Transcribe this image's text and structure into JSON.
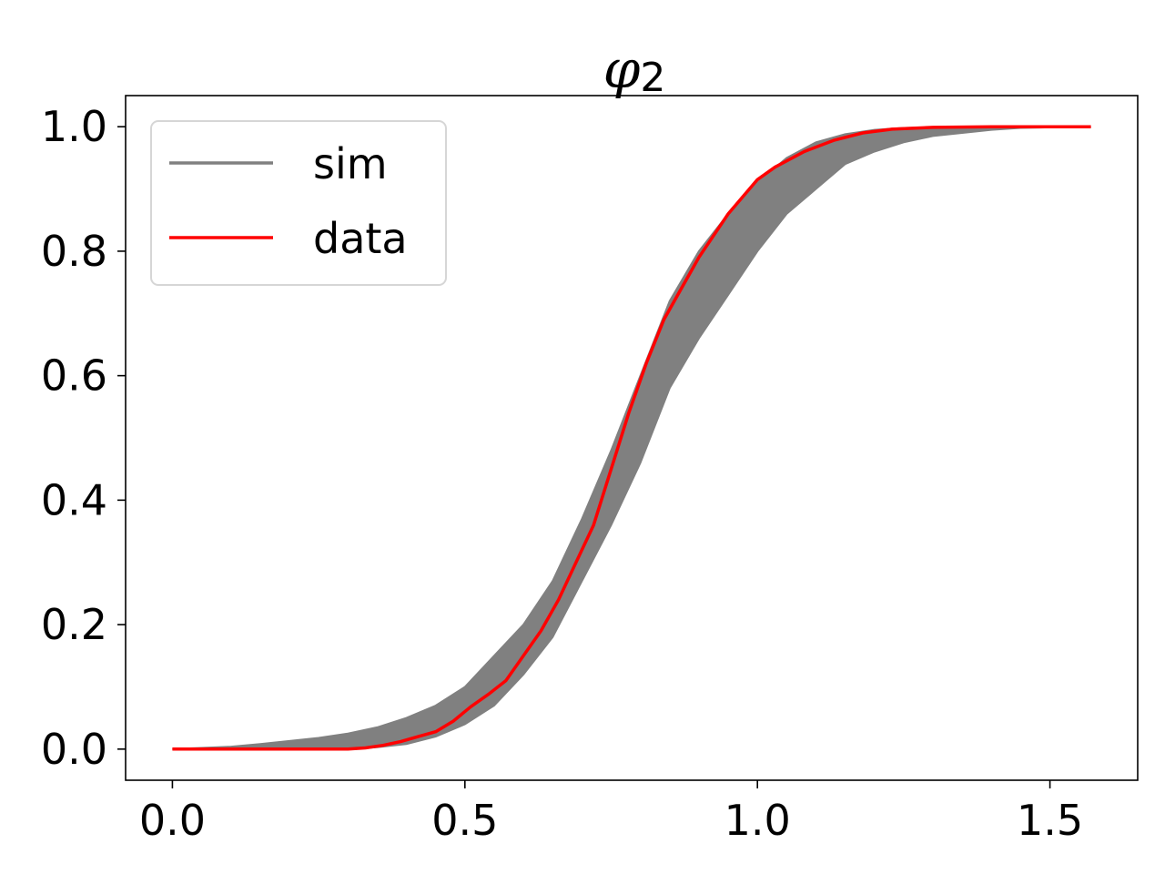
{
  "chart_data": {
    "type": "line",
    "title": {
      "base": "φ",
      "subscript": "2"
    },
    "xlabel": "",
    "ylabel": "",
    "xlim": [
      -0.08,
      1.65
    ],
    "ylim": [
      -0.05,
      1.05
    ],
    "xticks": [
      0.0,
      0.5,
      1.0,
      1.5
    ],
    "xtick_labels": [
      "0.0",
      "0.5",
      "1.0",
      "1.5"
    ],
    "yticks": [
      0.0,
      0.2,
      0.4,
      0.6,
      0.8,
      1.0
    ],
    "ytick_labels": [
      "0.0",
      "0.2",
      "0.4",
      "0.6",
      "0.8",
      "1.0"
    ],
    "grid": false,
    "legend_position": "upper-left",
    "legend": [
      {
        "label": "sim",
        "color": "#808080"
      },
      {
        "label": "data",
        "color": "#ff0000"
      }
    ],
    "sim_band": {
      "name": "sim",
      "color": "#808080",
      "x": [
        0.0,
        0.05,
        0.1,
        0.15,
        0.2,
        0.25,
        0.3,
        0.35,
        0.4,
        0.45,
        0.5,
        0.55,
        0.6,
        0.65,
        0.7,
        0.75,
        0.8,
        0.85,
        0.9,
        0.95,
        1.0,
        1.05,
        1.1,
        1.15,
        1.2,
        1.25,
        1.3,
        1.35,
        1.4,
        1.45,
        1.5,
        1.57
      ],
      "lower": [
        0.0,
        0.0,
        0.0,
        0.0,
        0.0,
        0.0,
        0.0,
        0.003,
        0.008,
        0.02,
        0.04,
        0.07,
        0.12,
        0.18,
        0.27,
        0.36,
        0.46,
        0.58,
        0.66,
        0.73,
        0.8,
        0.86,
        0.9,
        0.94,
        0.96,
        0.975,
        0.985,
        0.99,
        0.995,
        0.998,
        0.999,
        1.0
      ],
      "upper": [
        0.0,
        0.002,
        0.004,
        0.008,
        0.013,
        0.018,
        0.025,
        0.035,
        0.05,
        0.07,
        0.1,
        0.15,
        0.2,
        0.27,
        0.37,
        0.48,
        0.6,
        0.72,
        0.8,
        0.86,
        0.91,
        0.95,
        0.975,
        0.988,
        0.995,
        0.998,
        0.999,
        1.0,
        1.0,
        1.0,
        1.0,
        1.0
      ]
    },
    "series": [
      {
        "name": "data",
        "color": "#ff0000",
        "x": [
          0.0,
          0.05,
          0.1,
          0.15,
          0.2,
          0.25,
          0.3,
          0.33,
          0.36,
          0.39,
          0.42,
          0.45,
          0.48,
          0.51,
          0.54,
          0.57,
          0.6,
          0.63,
          0.66,
          0.69,
          0.72,
          0.75,
          0.78,
          0.81,
          0.84,
          0.87,
          0.9,
          0.95,
          1.0,
          1.03,
          1.08,
          1.13,
          1.18,
          1.23,
          1.3,
          1.4,
          1.5,
          1.57
        ],
        "values": [
          0.0,
          0.0,
          0.0,
          0.0,
          0.0,
          0.0,
          0.0,
          0.002,
          0.006,
          0.012,
          0.02,
          0.028,
          0.045,
          0.068,
          0.088,
          0.11,
          0.15,
          0.19,
          0.24,
          0.3,
          0.36,
          0.45,
          0.54,
          0.62,
          0.69,
          0.74,
          0.79,
          0.86,
          0.915,
          0.935,
          0.96,
          0.978,
          0.99,
          0.996,
          0.999,
          1.0,
          1.0,
          1.0
        ]
      }
    ]
  }
}
